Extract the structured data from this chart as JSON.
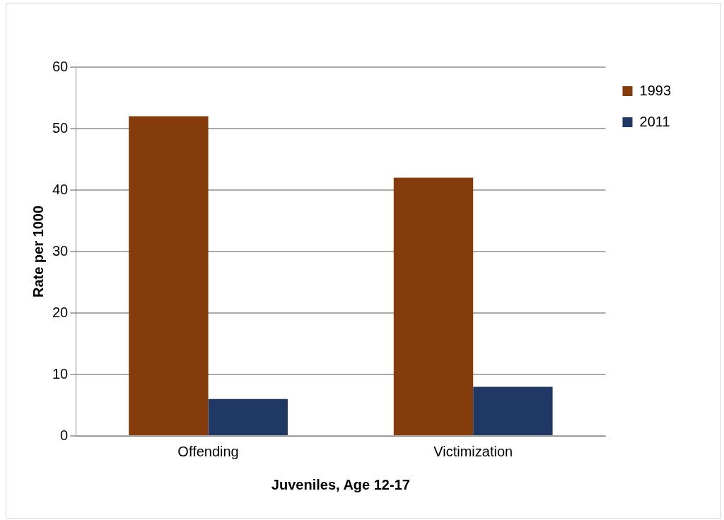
{
  "chart_data": {
    "type": "bar",
    "xlabel": "Juveniles, Age 12-17",
    "ylabel": "Rate per 1000",
    "categories": [
      "Offending",
      "Victimization"
    ],
    "series": [
      {
        "name": "1993",
        "color": "#843c0c",
        "values": [
          52,
          42
        ]
      },
      {
        "name": "2011",
        "color": "#1f3864",
        "values": [
          6,
          8
        ]
      }
    ],
    "ylim": [
      0,
      60
    ],
    "yticks": [
      0,
      10,
      20,
      30,
      40,
      50,
      60
    ],
    "grid": "y",
    "legend": "right"
  }
}
